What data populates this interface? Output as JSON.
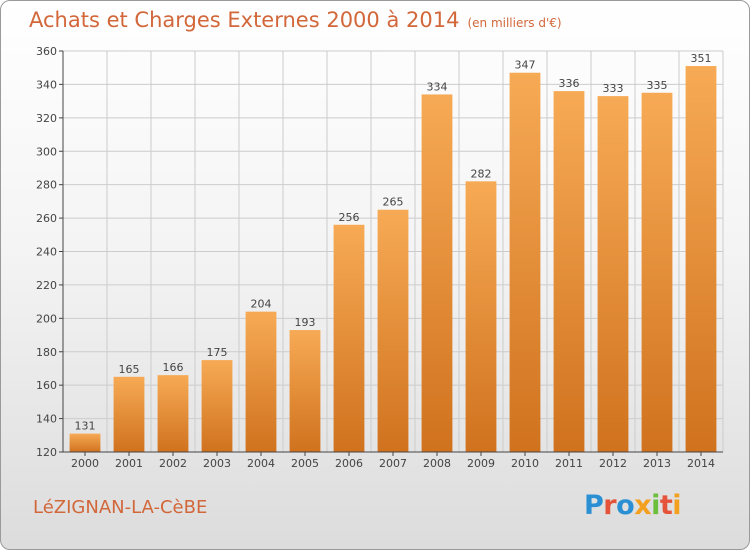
{
  "title": "Achats et Charges Externes 2000 à 2014",
  "subtitle": "(en milliers d'€)",
  "commune": "LéZIGNAN-LA-CèBE",
  "logo": {
    "text": "Proxiti",
    "letter_colors": [
      "#2b8fd4",
      "#e5533a",
      "#2b8fd4",
      "#f3a01f",
      "#6bbf3a",
      "#e5533a",
      "#f3a01f"
    ]
  },
  "colors": {
    "bar_light": "#f7aa55",
    "bar_dark": "#d0721e",
    "title": "#d2673a",
    "grid": "#cccccc",
    "axis": "#444444"
  },
  "chart_data": {
    "type": "bar",
    "title": "Achats et Charges Externes 2000 à 2014",
    "subtitle": "(en milliers d'€)",
    "xlabel": "",
    "ylabel": "",
    "categories": [
      "2000",
      "2001",
      "2002",
      "2003",
      "2004",
      "2005",
      "2006",
      "2007",
      "2008",
      "2009",
      "2010",
      "2011",
      "2012",
      "2013",
      "2014"
    ],
    "values": [
      131,
      165,
      166,
      175,
      204,
      193,
      256,
      265,
      334,
      282,
      347,
      336,
      333,
      335,
      351
    ],
    "ylim": [
      120,
      360
    ],
    "yticks": [
      120,
      140,
      160,
      180,
      200,
      220,
      240,
      260,
      280,
      300,
      320,
      340,
      360
    ],
    "grid": true,
    "data_labels": true
  }
}
